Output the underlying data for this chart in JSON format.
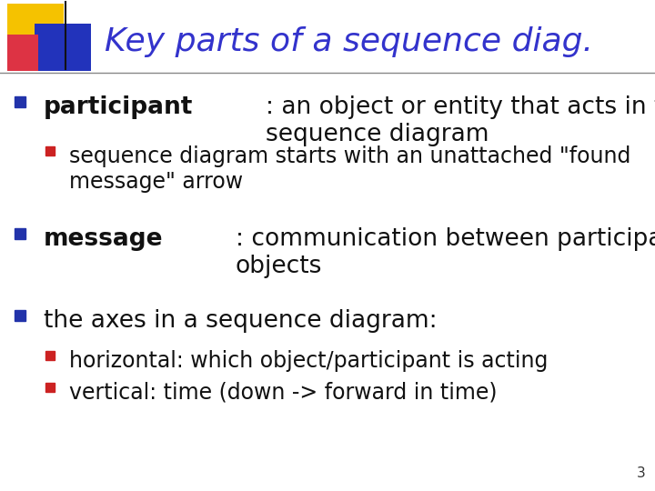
{
  "title": "Key parts of a sequence diag.",
  "title_color": "#3333cc",
  "title_fontsize": 26,
  "bg_color": "#ffffff",
  "slide_number": "3",
  "bullet_color_0": "#2233aa",
  "bullet_color_1": "#cc2222",
  "text_color": "#111111",
  "logo_yellow": "#f5c200",
  "logo_blue": "#2233bb",
  "logo_pink": "#dd3344",
  "line_color": "#888888",
  "items": [
    {
      "level": 0,
      "bold_part": "participant",
      "rest": ": an object or entity that acts in the\nsequence diagram",
      "fontsize": 19
    },
    {
      "level": 1,
      "bold_part": "",
      "rest": "sequence diagram starts with an unattached \"found\nmessage\" arrow",
      "fontsize": 17
    },
    {
      "level": 0,
      "bold_part": "message",
      "rest": ": communication between participant\nobjects",
      "fontsize": 19
    },
    {
      "level": 0,
      "bold_part": "",
      "rest": "the axes in a sequence diagram:",
      "fontsize": 19
    },
    {
      "level": 1,
      "bold_part": "",
      "rest": "horizontal: which object/participant is acting",
      "fontsize": 17
    },
    {
      "level": 1,
      "bold_part": "",
      "rest": "vertical: time (down -> forward in time)",
      "fontsize": 17
    }
  ]
}
